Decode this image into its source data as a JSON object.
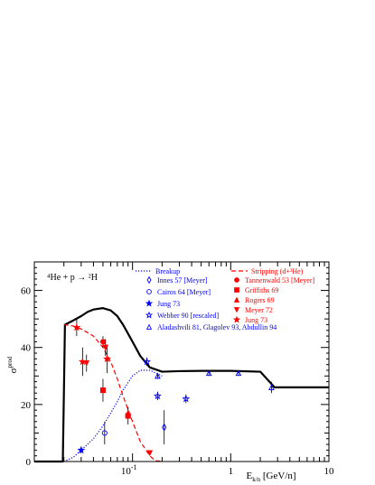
{
  "chart_data": {
    "type": "scatter",
    "reaction_label": "⁴He + p → ²H",
    "ylabel": "σ^prod [mb]",
    "ylabel_main": "σ",
    "ylabel_sup": "prod",
    "xlabel": "E_k/n [GeV/n]",
    "xlabel_main": "E",
    "xlabel_sub": "k/n",
    "xlabel_unit": " [GeV/n]",
    "x_scale": "log",
    "xlim": [
      0.01,
      10
    ],
    "ylim": [
      0,
      70
    ],
    "x_major_ticks": [
      {
        "value": 0.1,
        "base": "10",
        "exp": "-1"
      },
      {
        "value": 1,
        "label": "1"
      },
      {
        "value": 10,
        "label": "10"
      }
    ],
    "y_ticks": [
      {
        "value": 0,
        "label": "0"
      },
      {
        "value": 20,
        "label": "20"
      },
      {
        "value": 40,
        "label": "40"
      },
      {
        "value": 60,
        "label": "60"
      }
    ],
    "colors": {
      "total": "#000000",
      "breakup": "#0000ff",
      "stripping": "#ff0000",
      "frame": "#000000",
      "error": "#000000"
    },
    "curves": [
      {
        "name": "",
        "role": "total",
        "style": "solid",
        "color": "#000000",
        "x": [
          0.01,
          0.0195,
          0.02,
          0.0205,
          0.025,
          0.03,
          0.035,
          0.04,
          0.05,
          0.06,
          0.07,
          0.08,
          0.1,
          0.12,
          0.15,
          0.2,
          0.3,
          0.5,
          1,
          2,
          2.8,
          3,
          10
        ],
        "y": [
          0,
          0,
          24,
          48,
          49.5,
          51,
          52.5,
          53.3,
          53.8,
          53,
          51,
          48,
          42,
          37,
          33,
          31.5,
          31.7,
          31.8,
          31.8,
          31.5,
          26,
          26,
          26
        ]
      },
      {
        "name": "Breakup",
        "role": "breakup",
        "style": "dotted",
        "color": "#0000ff",
        "x": [
          0.02,
          0.025,
          0.03,
          0.04,
          0.05,
          0.06,
          0.07,
          0.08,
          0.1,
          0.12,
          0.15,
          0.2
        ],
        "y": [
          0,
          1.5,
          4,
          8,
          12.5,
          17,
          21,
          25,
          30,
          32,
          32,
          30
        ]
      },
      {
        "name": "Stripping (d+³He)",
        "role": "stripping",
        "style": "dashed",
        "color": "#ff0000",
        "x": [
          0.02,
          0.025,
          0.03,
          0.04,
          0.05,
          0.06,
          0.07,
          0.08,
          0.1,
          0.12,
          0.15,
          0.17,
          0.2
        ],
        "y": [
          48,
          47.5,
          46.5,
          44,
          40,
          35,
          29,
          23,
          14,
          7,
          2,
          0.3,
          0
        ]
      }
    ],
    "series": [
      {
        "name": "Innes 57 [Meyer]",
        "marker": "diamond-open",
        "color": "#0000ff",
        "points": [
          {
            "x": 0.21,
            "y": 12,
            "err": 6
          }
        ]
      },
      {
        "name": "Cairos 64 [Meyer]",
        "marker": "circle-open",
        "color": "#0000ff",
        "points": [
          {
            "x": 0.052,
            "y": 10,
            "err": 4
          }
        ]
      },
      {
        "name": "Jung 73",
        "marker": "star-filled",
        "color": "#0000ff",
        "points": [
          {
            "x": 0.03,
            "y": 4,
            "err": 1.2
          }
        ]
      },
      {
        "name": "Webber 90 [rescaled]",
        "marker": "star-open",
        "color": "#0000ff",
        "points": [
          {
            "x": 0.14,
            "y": 35,
            "err": 1.5
          },
          {
            "x": 0.18,
            "y": 23,
            "err": 1.5
          },
          {
            "x": 0.35,
            "y": 22,
            "err": 1.5
          }
        ]
      },
      {
        "name": "Aladashvili 81, Glagolev 93, Abdullin 94",
        "marker": "triangle-open",
        "color": "#0000ff",
        "points": [
          {
            "x": 0.18,
            "y": 30,
            "err": 1
          },
          {
            "x": 0.6,
            "y": 31,
            "err": 1
          },
          {
            "x": 1.2,
            "y": 31,
            "err": 1
          },
          {
            "x": 2.6,
            "y": 26,
            "err": 2
          }
        ]
      },
      {
        "name": "Tannenwald 53 [Meyer]",
        "marker": "circle-filled",
        "color": "#ff0000",
        "points": [
          {
            "x": 0.05,
            "y": 42,
            "err": 2
          }
        ]
      },
      {
        "name": "Griffiths 69",
        "marker": "square-filled",
        "color": "#ff0000",
        "points": [
          {
            "x": 0.05,
            "y": 25,
            "err": 4
          },
          {
            "x": 0.09,
            "y": 16,
            "err": 3
          }
        ]
      },
      {
        "name": "Rogers 69",
        "marker": "triangle-filled",
        "color": "#ff0000",
        "points": [
          {
            "x": 0.09,
            "y": 17,
            "err": 2
          }
        ]
      },
      {
        "name": "Meyer 72",
        "marker": "triangle-down-filled",
        "color": "#ff0000",
        "points": [
          {
            "x": 0.034,
            "y": 34.5,
            "err": 3
          },
          {
            "x": 0.053,
            "y": 40,
            "err": 3
          },
          {
            "x": 0.15,
            "y": 3,
            "err": 0.6
          }
        ]
      },
      {
        "name": "Jung 73",
        "marker": "star-filled",
        "color": "#ff0000",
        "points": [
          {
            "x": 0.027,
            "y": 47,
            "err": 3
          },
          {
            "x": 0.031,
            "y": 35,
            "err": 5
          },
          {
            "x": 0.055,
            "y": 36,
            "err": 5
          }
        ]
      }
    ]
  }
}
